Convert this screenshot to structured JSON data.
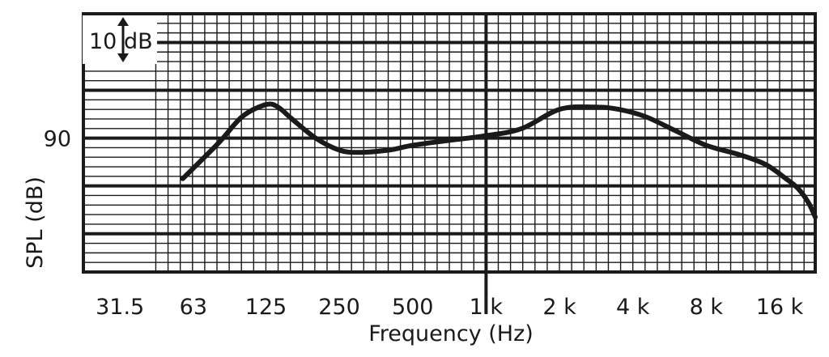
{
  "chart_data": {
    "type": "line",
    "title": "",
    "xlabel": "Frequency (Hz)",
    "ylabel": "SPL (dB)",
    "x_scale": "log",
    "xlim": [
      22.3,
      22400
    ],
    "ylim": [
      62,
      116
    ],
    "x_ticks": [
      {
        "label": "31.5",
        "value": 31.5
      },
      {
        "label": "63",
        "value": 63
      },
      {
        "label": "125",
        "value": 125
      },
      {
        "label": "250",
        "value": 250
      },
      {
        "label": "500",
        "value": 500
      },
      {
        "label": "1 k",
        "value": 1000
      },
      {
        "label": "2 k",
        "value": 2000
      },
      {
        "label": "4 k",
        "value": 4000
      },
      {
        "label": "8 k",
        "value": 8000
      },
      {
        "label": "16 k",
        "value": 16000
      }
    ],
    "y_ticks": [
      {
        "label": "90",
        "value": 90
      }
    ],
    "scale_marker": "10 dB",
    "grid": true,
    "series": [
      {
        "color": "#1a1a1a",
        "x": [
          57,
          80,
          100,
          125,
          140,
          160,
          200,
          250,
          300,
          400,
          500,
          700,
          1000,
          1400,
          2000,
          2800,
          3500,
          4500,
          6000,
          8000,
          11000,
          14000,
          17000,
          19000,
          21000,
          22400
        ],
        "y": [
          81.5,
          89,
          94.5,
          97,
          96.5,
          94,
          90,
          87.5,
          87,
          87.5,
          88.5,
          89.5,
          90.5,
          92,
          96,
          96.5,
          96,
          94.5,
          91.5,
          88.5,
          86.5,
          84.5,
          81.5,
          79.5,
          76.5,
          73.5
        ]
      }
    ]
  },
  "colors": {
    "line": "#1a1a1a",
    "grid": "#1a1a1a",
    "background": "#ffffff"
  }
}
